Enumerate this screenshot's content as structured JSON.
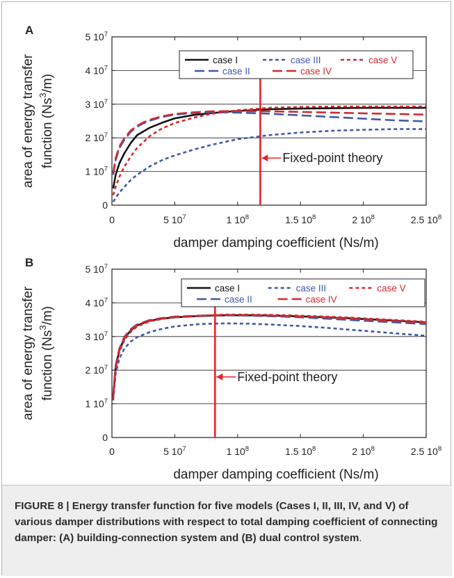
{
  "figure": {
    "caption_label": "FIGURE 8",
    "caption_separator": " | ",
    "caption_text": "Energy transfer function for five models (Cases I, II, III, IV, and V) of various damper distributions with respect to total damping coefficient of connecting damper: (A) building-connection system and (B) dual control system",
    "caption_end": "."
  },
  "colors": {
    "case_I": "#111111",
    "case_II": "#3f59a8",
    "case_III": "#3f59a8",
    "case_IV": "#cf2b2f",
    "case_V": "#cf2b2f",
    "fixed_point_line": "#e5232b",
    "grid": "#231f20"
  },
  "chart_data": [
    {
      "panel": "A",
      "type": "line",
      "xlabel": "damper damping coefficient (Ns/m)",
      "ylabel_main": "area of energy transfer",
      "ylabel_unit_prefix": "function (Ns",
      "ylabel_unit_sup": "3",
      "ylabel_unit_suffix": "/m)",
      "xlim": [
        0,
        250000000
      ],
      "ylim": [
        0,
        50000000
      ],
      "x_ticks": [
        {
          "value": 0,
          "base": "0",
          "exp": ""
        },
        {
          "value": 50000000,
          "base": "5 10",
          "exp": "7"
        },
        {
          "value": 100000000,
          "base": "1 10",
          "exp": "8"
        },
        {
          "value": 150000000,
          "base": "1.5 10",
          "exp": "8"
        },
        {
          "value": 200000000,
          "base": "2 10",
          "exp": "8"
        },
        {
          "value": 250000000,
          "base": "2.5 10",
          "exp": "8"
        }
      ],
      "y_ticks": [
        {
          "value": 0,
          "base": "0",
          "exp": ""
        },
        {
          "value": 10000000,
          "base": "1 10",
          "exp": "7"
        },
        {
          "value": 20000000,
          "base": "2 10",
          "exp": "7"
        },
        {
          "value": 30000000,
          "base": "3 10",
          "exp": "7"
        },
        {
          "value": 40000000,
          "base": "4 10",
          "exp": "7"
        },
        {
          "value": 50000000,
          "base": "5 10",
          "exp": "7"
        }
      ],
      "grid": "horizontal",
      "legend_position": "top-right",
      "annotation": {
        "text": "Fixed-point theory",
        "x_line": 118000000,
        "arrow_y": 14000000
      },
      "series": [
        {
          "name": "case I",
          "color_key": "case_I",
          "dash": "solid",
          "x": [
            1000000,
            3000000,
            6000000,
            10000000,
            15000000,
            20000000,
            30000000,
            40000000,
            50000000,
            65000000,
            80000000,
            100000000,
            125000000,
            150000000,
            175000000,
            200000000,
            225000000,
            250000000
          ],
          "y": [
            5000000,
            9000000,
            12500000,
            15500000,
            18500000,
            20800000,
            23000000,
            24500000,
            25800000,
            26800000,
            27400000,
            28000000,
            28500000,
            28700000,
            28800000,
            28900000,
            28900000,
            28900000
          ]
        },
        {
          "name": "case II",
          "color_key": "case_II",
          "dash": "longdash",
          "x": [
            1000000,
            3000000,
            6000000,
            10000000,
            15000000,
            20000000,
            25000000,
            30000000,
            40000000,
            50000000,
            65000000,
            80000000,
            100000000,
            125000000,
            150000000,
            175000000,
            200000000,
            225000000,
            250000000
          ],
          "y": [
            9000000,
            13500000,
            17000000,
            19500000,
            21800000,
            23300000,
            24300000,
            25100000,
            26200000,
            26900000,
            27400000,
            27600000,
            27500000,
            27200000,
            26700000,
            26200000,
            25700000,
            25200000,
            24900000
          ]
        },
        {
          "name": "case III",
          "color_key": "case_III",
          "dash": "shortdash",
          "x": [
            1000000,
            3000000,
            6000000,
            10000000,
            15000000,
            20000000,
            30000000,
            40000000,
            50000000,
            65000000,
            80000000,
            100000000,
            125000000,
            150000000,
            175000000,
            200000000,
            225000000,
            250000000
          ],
          "y": [
            1000000,
            2200000,
            3800000,
            5500000,
            7500000,
            9000000,
            11500000,
            13400000,
            14800000,
            16500000,
            18000000,
            19600000,
            20800000,
            21600000,
            22100000,
            22400000,
            22600000,
            22600000
          ]
        },
        {
          "name": "case IV",
          "color_key": "case_IV",
          "dash": "longdash",
          "x": [
            1000000,
            3000000,
            6000000,
            10000000,
            15000000,
            20000000,
            25000000,
            30000000,
            40000000,
            50000000,
            65000000,
            80000000,
            100000000,
            125000000,
            150000000,
            175000000,
            200000000,
            225000000,
            250000000
          ],
          "y": [
            9500000,
            14000000,
            17500000,
            20000000,
            22200000,
            23600000,
            24600000,
            25400000,
            26400000,
            27100000,
            27600000,
            27900000,
            28000000,
            27900000,
            27700000,
            27500000,
            27300000,
            27100000,
            26900000
          ]
        },
        {
          "name": "case V",
          "color_key": "case_V",
          "dash": "shortdash",
          "x": [
            1000000,
            3000000,
            6000000,
            10000000,
            15000000,
            20000000,
            30000000,
            40000000,
            50000000,
            65000000,
            80000000,
            100000000,
            125000000,
            150000000,
            175000000,
            200000000,
            225000000,
            250000000
          ],
          "y": [
            3000000,
            5500000,
            8500000,
            11500000,
            14500000,
            17000000,
            20500000,
            22800000,
            24400000,
            26000000,
            27200000,
            28200000,
            28900000,
            29200000,
            29300000,
            29300000,
            29300000,
            29300000
          ]
        }
      ]
    },
    {
      "panel": "B",
      "type": "line",
      "xlabel": "damper damping coefficient (Ns/m)",
      "ylabel_main": "area of energy transfer",
      "ylabel_unit_prefix": "function (Ns",
      "ylabel_unit_sup": "3",
      "ylabel_unit_suffix": "/m)",
      "xlim": [
        0,
        250000000
      ],
      "ylim": [
        0,
        50000000
      ],
      "x_ticks": [
        {
          "value": 0,
          "base": "0",
          "exp": ""
        },
        {
          "value": 50000000,
          "base": "5 10",
          "exp": "7"
        },
        {
          "value": 100000000,
          "base": "1 10",
          "exp": "8"
        },
        {
          "value": 150000000,
          "base": "1.5 10",
          "exp": "8"
        },
        {
          "value": 200000000,
          "base": "2 10",
          "exp": "8"
        },
        {
          "value": 250000000,
          "base": "2.5 10",
          "exp": "8"
        }
      ],
      "y_ticks": [
        {
          "value": 0,
          "base": "0",
          "exp": ""
        },
        {
          "value": 10000000,
          "base": "1 10",
          "exp": "7"
        },
        {
          "value": 20000000,
          "base": "2 10",
          "exp": "7"
        },
        {
          "value": 30000000,
          "base": "3 10",
          "exp": "7"
        },
        {
          "value": 40000000,
          "base": "4 10",
          "exp": "7"
        },
        {
          "value": 50000000,
          "base": "5 10",
          "exp": "7"
        }
      ],
      "grid": "horizontal",
      "legend_position": "top-right",
      "annotation": {
        "text": "Fixed-point theory",
        "x_line": 82000000,
        "arrow_y": 18000000
      },
      "series": [
        {
          "name": "case I",
          "color_key": "case_I",
          "dash": "solid",
          "x": [
            1000000,
            3000000,
            6000000,
            10000000,
            15000000,
            20000000,
            30000000,
            40000000,
            50000000,
            70000000,
            90000000,
            110000000,
            130000000,
            150000000,
            170000000,
            190000000,
            210000000,
            230000000,
            250000000
          ],
          "y": [
            12000000,
            21000000,
            26000000,
            29500000,
            31800000,
            33300000,
            34700000,
            35300000,
            35700000,
            36100000,
            36300000,
            36300000,
            36200000,
            36000000,
            35700000,
            35400000,
            35000000,
            34600000,
            34200000
          ]
        },
        {
          "name": "case II",
          "color_key": "case_II",
          "dash": "longdash",
          "x": [
            1000000,
            3000000,
            6000000,
            10000000,
            15000000,
            20000000,
            30000000,
            40000000,
            50000000,
            70000000,
            90000000,
            110000000,
            130000000,
            150000000,
            170000000,
            190000000,
            210000000,
            230000000,
            250000000
          ],
          "y": [
            12500000,
            21500000,
            26500000,
            30000000,
            32200000,
            33600000,
            34900000,
            35500000,
            35900000,
            36200000,
            36300000,
            36200000,
            36000000,
            35700000,
            35300000,
            34900000,
            34500000,
            34100000,
            33700000
          ]
        },
        {
          "name": "case III",
          "color_key": "case_III",
          "dash": "shortdash",
          "x": [
            1000000,
            3000000,
            6000000,
            10000000,
            15000000,
            20000000,
            30000000,
            40000000,
            50000000,
            70000000,
            90000000,
            110000000,
            130000000,
            150000000,
            170000000,
            190000000,
            210000000,
            230000000,
            250000000
          ],
          "y": [
            11000000,
            19000000,
            23500000,
            26500000,
            28500000,
            29800000,
            31300000,
            32300000,
            33000000,
            33700000,
            33900000,
            33800000,
            33500000,
            33100000,
            32600000,
            32000000,
            31400000,
            30800000,
            30200000
          ]
        },
        {
          "name": "case IV",
          "color_key": "case_IV",
          "dash": "longdash",
          "x": [
            1000000,
            3000000,
            6000000,
            10000000,
            15000000,
            20000000,
            30000000,
            40000000,
            50000000,
            70000000,
            90000000,
            110000000,
            130000000,
            150000000,
            170000000,
            190000000,
            210000000,
            230000000,
            250000000
          ],
          "y": [
            12300000,
            21300000,
            26300000,
            29800000,
            32000000,
            33500000,
            34800000,
            35400000,
            35800000,
            36200000,
            36400000,
            36400000,
            36200000,
            36000000,
            35700000,
            35300000,
            34900000,
            34500000,
            34100000
          ]
        },
        {
          "name": "case V",
          "color_key": "case_V",
          "dash": "shortdash",
          "x": [
            1000000,
            3000000,
            6000000,
            10000000,
            15000000,
            20000000,
            30000000,
            40000000,
            50000000,
            70000000,
            90000000,
            110000000,
            130000000,
            150000000,
            170000000,
            190000000,
            210000000,
            230000000,
            250000000
          ],
          "y": [
            11500000,
            20500000,
            25500000,
            29000000,
            31400000,
            33000000,
            34500000,
            35200000,
            35700000,
            36200000,
            36500000,
            36500000,
            36400000,
            36200000,
            35900000,
            35600000,
            35200000,
            34800000,
            34400000
          ]
        }
      ]
    }
  ]
}
